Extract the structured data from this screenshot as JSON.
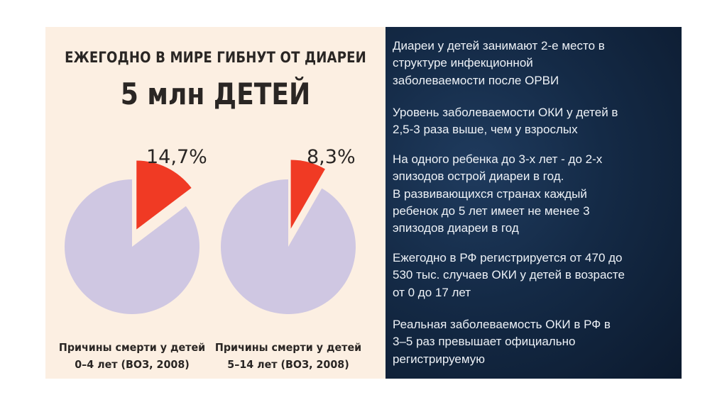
{
  "left_panel": {
    "headline": "ЕЖЕГОДНО В МИРЕ ГИБНУТ ОТ ДИАРЕИ",
    "subheadline": "5 млн ДЕТЕЙ"
  },
  "chart_data": [
    {
      "type": "pie",
      "title": "Причины смерти у детей 0–4 лет (ВОЗ, 2008)",
      "caption_line1": "Причины смерти у детей",
      "caption_line2": "0–4 лет (ВОЗ, 2008)",
      "label": "14,7%",
      "slices": [
        {
          "name": "diarrhea",
          "value": 14.7,
          "color": "#f03a24",
          "exploded": true
        },
        {
          "name": "other",
          "value": 85.3,
          "color": "#cfc7e2"
        }
      ]
    },
    {
      "type": "pie",
      "title": "Причины смерти у детей 5–14 лет (ВОЗ, 2008)",
      "caption_line1": "Причины смерти у детей",
      "caption_line2": "5–14 лет (ВОЗ, 2008)",
      "label": "8,3%",
      "slices": [
        {
          "name": "diarrhea",
          "value": 8.3,
          "color": "#f03a24",
          "exploded": true
        },
        {
          "name": "other",
          "value": 91.7,
          "color": "#cfc7e2"
        }
      ]
    }
  ],
  "right_panel": {
    "paragraphs": [
      "Диареи у детей занимают 2-е место в\nструктуре инфекционной\nзаболеваемости после ОРВИ",
      "Уровень заболеваемости ОКИ у детей в\n2,5-3 раза выше, чем у взрослых",
      "На одного ребенка до 3-х лет - до 2-х\nэпизодов острой диареи в год.\nВ развивающихся странах каждый\nребенок до 5 лет имеет не менее 3\nэпизодов диареи в год",
      "Ежегодно в РФ регистрируется от 470 до\n530 тыс. случаев ОКИ у детей в возрасте\nот 0 до 17 лет",
      "Реальная заболеваемость ОКИ в РФ в\n3–5 раз превышает официально\nрегистрируемую"
    ]
  }
}
